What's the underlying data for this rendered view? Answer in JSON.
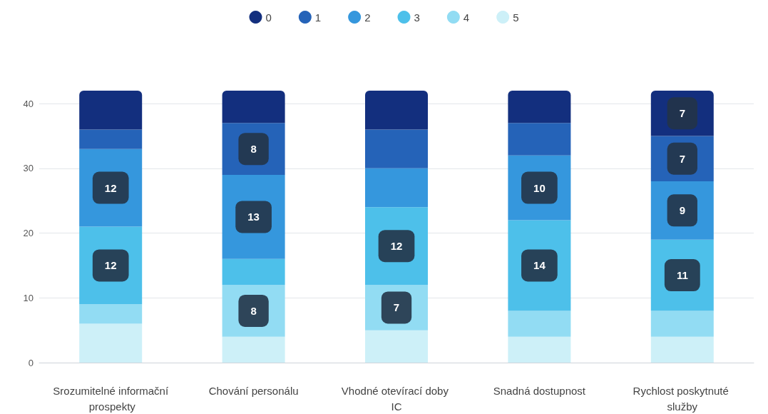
{
  "chart_data": {
    "type": "bar",
    "stacked": true,
    "categories": [
      "Srozumitelné informační prospekty",
      "Chování personálu",
      "Vhodné otevírací doby IC",
      "Snadná dostupnost",
      "Rychlost poskytnuté služby"
    ],
    "series": [
      {
        "name": "5",
        "color": "#cdf0f8",
        "values": [
          6,
          4,
          5,
          4,
          4
        ]
      },
      {
        "name": "4",
        "color": "#92dcf3",
        "values": [
          3,
          8,
          7,
          4,
          4
        ],
        "value_labels": [
          null,
          "8",
          "7",
          null,
          null
        ]
      },
      {
        "name": "3",
        "color": "#4dc0ea",
        "values": [
          12,
          4,
          12,
          14,
          11
        ],
        "value_labels": [
          "12",
          null,
          "12",
          "14",
          "11"
        ]
      },
      {
        "name": "2",
        "color": "#3597dd",
        "values": [
          12,
          13,
          6,
          10,
          9
        ],
        "value_labels": [
          "12",
          "13",
          null,
          "10",
          "9"
        ]
      },
      {
        "name": "1",
        "color": "#2563b8",
        "values": [
          3,
          8,
          6,
          5,
          7
        ],
        "value_labels": [
          null,
          "8",
          null,
          null,
          "7"
        ]
      },
      {
        "name": "0",
        "color": "#132f7e",
        "values": [
          6,
          5,
          6,
          5,
          7
        ],
        "value_labels": [
          null,
          null,
          null,
          null,
          "7"
        ]
      }
    ],
    "ylim": [
      0,
      42
    ],
    "yticks": [
      0,
      10,
      20,
      30,
      40
    ],
    "grid": "y",
    "legend": "top"
  }
}
